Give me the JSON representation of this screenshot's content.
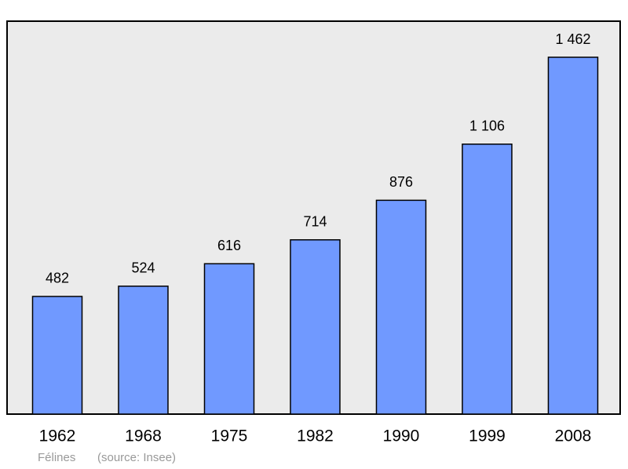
{
  "chart_data": {
    "type": "bar",
    "title": "Félines",
    "source": "(source: Insee)",
    "categories": [
      "1962",
      "1968",
      "1975",
      "1982",
      "1990",
      "1999",
      "2008"
    ],
    "values": [
      482,
      524,
      616,
      714,
      876,
      1106,
      1462
    ],
    "value_labels": [
      "482",
      "524",
      "616",
      "714",
      "876",
      "1 106",
      "1 462"
    ],
    "color": "#7099ff"
  }
}
